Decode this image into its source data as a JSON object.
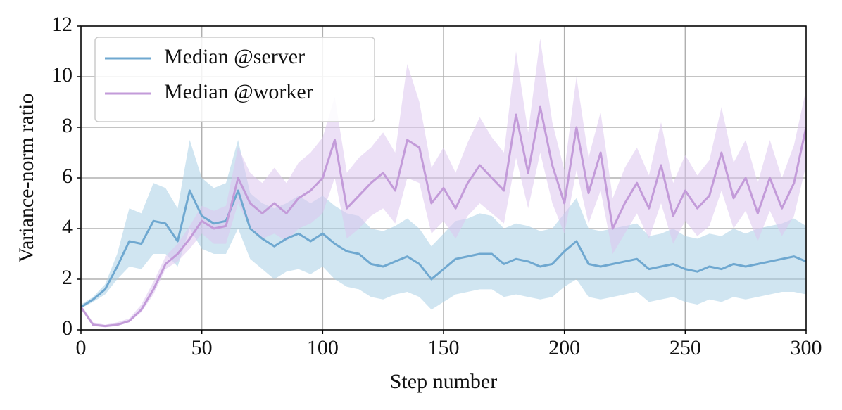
{
  "chart_data": {
    "type": "line",
    "xlabel": "Step number",
    "ylabel": "Variance-norm ratio",
    "x": [
      0,
      5,
      10,
      15,
      20,
      25,
      30,
      35,
      40,
      45,
      50,
      55,
      60,
      65,
      70,
      75,
      80,
      85,
      90,
      95,
      100,
      105,
      110,
      115,
      120,
      125,
      130,
      135,
      140,
      145,
      150,
      155,
      160,
      165,
      170,
      175,
      180,
      185,
      190,
      195,
      200,
      205,
      210,
      215,
      220,
      225,
      230,
      235,
      240,
      245,
      250,
      255,
      260,
      265,
      270,
      275,
      280,
      285,
      290,
      295,
      300
    ],
    "series": [
      {
        "name": "Median @server",
        "color": "#6fa8d0",
        "band_color": "#a9cfe6",
        "values": [
          0.9,
          1.2,
          1.6,
          2.5,
          3.5,
          3.4,
          4.3,
          4.2,
          3.5,
          5.5,
          4.5,
          4.2,
          4.3,
          5.5,
          4.0,
          3.6,
          3.3,
          3.6,
          3.8,
          3.5,
          3.8,
          3.4,
          3.1,
          3.0,
          2.6,
          2.5,
          2.7,
          2.9,
          2.6,
          2.0,
          2.4,
          2.8,
          2.9,
          3.0,
          3.0,
          2.6,
          2.8,
          2.7,
          2.5,
          2.6,
          3.1,
          3.5,
          2.6,
          2.5,
          2.6,
          2.7,
          2.8,
          2.4,
          2.5,
          2.6,
          2.4,
          2.3,
          2.5,
          2.4,
          2.6,
          2.5,
          2.6,
          2.7,
          2.8,
          2.9,
          2.7
        ],
        "lower": [
          0.85,
          1.1,
          1.4,
          2.0,
          2.5,
          2.4,
          3.0,
          3.0,
          2.5,
          4.0,
          3.2,
          3.0,
          3.0,
          4.0,
          2.8,
          2.4,
          2.0,
          2.3,
          2.4,
          2.2,
          2.5,
          2.0,
          1.7,
          1.6,
          1.3,
          1.2,
          1.4,
          1.5,
          1.3,
          0.8,
          1.1,
          1.4,
          1.5,
          1.6,
          1.6,
          1.3,
          1.4,
          1.3,
          1.2,
          1.3,
          1.7,
          2.0,
          1.3,
          1.2,
          1.3,
          1.4,
          1.5,
          1.1,
          1.2,
          1.3,
          1.1,
          1.0,
          1.2,
          1.1,
          1.3,
          1.2,
          1.3,
          1.4,
          1.5,
          1.5,
          1.4
        ],
        "upper": [
          1.0,
          1.3,
          1.8,
          3.0,
          4.8,
          4.6,
          5.8,
          5.6,
          4.8,
          7.5,
          6.0,
          5.6,
          5.8,
          7.5,
          5.4,
          5.0,
          4.8,
          5.0,
          5.3,
          5.0,
          5.3,
          4.9,
          4.6,
          4.5,
          4.0,
          3.9,
          4.1,
          4.4,
          4.0,
          3.3,
          3.8,
          4.3,
          4.4,
          4.6,
          4.5,
          4.0,
          4.2,
          4.1,
          3.9,
          4.0,
          4.6,
          5.2,
          4.0,
          3.9,
          4.0,
          4.1,
          4.2,
          3.7,
          3.8,
          4.0,
          3.7,
          3.6,
          3.8,
          3.7,
          4.0,
          3.8,
          4.0,
          4.1,
          4.2,
          4.4,
          4.1
        ]
      },
      {
        "name": "Median @worker",
        "color": "#c39bd9",
        "band_color": "#dcc6ee",
        "values": [
          0.9,
          0.2,
          0.15,
          0.2,
          0.35,
          0.8,
          1.6,
          2.6,
          3.0,
          3.6,
          4.3,
          4.0,
          4.1,
          6.0,
          5.0,
          4.6,
          5.0,
          4.6,
          5.2,
          5.5,
          6.0,
          7.5,
          4.8,
          5.3,
          5.8,
          6.2,
          5.5,
          7.5,
          7.2,
          5.0,
          5.6,
          4.8,
          5.8,
          6.5,
          6.0,
          5.5,
          8.5,
          6.2,
          8.8,
          6.5,
          5.0,
          8.0,
          5.4,
          7.0,
          4.0,
          5.0,
          5.8,
          4.8,
          6.5,
          4.5,
          5.5,
          4.8,
          5.3,
          7.0,
          5.2,
          6.0,
          4.6,
          6.0,
          4.8,
          5.8,
          8.0
        ],
        "lower": [
          0.85,
          0.15,
          0.1,
          0.15,
          0.3,
          0.7,
          1.4,
          2.4,
          2.7,
          3.2,
          3.8,
          3.4,
          3.4,
          5.0,
          4.0,
          3.6,
          3.8,
          3.5,
          4.0,
          4.2,
          4.6,
          6.0,
          3.6,
          4.0,
          4.5,
          4.8,
          4.2,
          6.0,
          5.8,
          3.8,
          4.3,
          3.6,
          4.5,
          5.0,
          4.6,
          4.2,
          6.8,
          4.8,
          7.0,
          5.0,
          3.8,
          6.3,
          4.2,
          5.5,
          3.0,
          3.8,
          4.6,
          3.6,
          5.0,
          3.4,
          4.3,
          3.7,
          4.1,
          5.5,
          4.0,
          4.7,
          3.5,
          4.7,
          3.7,
          4.5,
          6.5
        ],
        "upper": [
          1.0,
          0.3,
          0.2,
          0.3,
          0.45,
          1.0,
          1.9,
          2.9,
          3.4,
          4.1,
          4.9,
          4.7,
          4.9,
          7.2,
          6.2,
          5.8,
          6.4,
          5.8,
          6.6,
          7.0,
          7.6,
          9.2,
          6.2,
          6.8,
          7.2,
          7.8,
          7.0,
          10.5,
          9.0,
          6.4,
          7.2,
          6.2,
          7.4,
          8.4,
          7.6,
          7.0,
          11.0,
          7.8,
          11.5,
          8.2,
          6.3,
          10.0,
          6.8,
          8.6,
          5.2,
          6.4,
          7.2,
          6.1,
          8.2,
          5.8,
          6.9,
          6.1,
          6.7,
          8.8,
          6.6,
          7.5,
          5.8,
          7.5,
          6.0,
          7.3,
          9.5
        ]
      }
    ],
    "xlim": [
      0,
      300
    ],
    "xticks": [
      0,
      50,
      100,
      150,
      200,
      250,
      300
    ],
    "ylim": [
      0,
      12
    ],
    "yticks": [
      0,
      2,
      4,
      6,
      8,
      10,
      12
    ],
    "grid": true,
    "legend": "upper left"
  }
}
